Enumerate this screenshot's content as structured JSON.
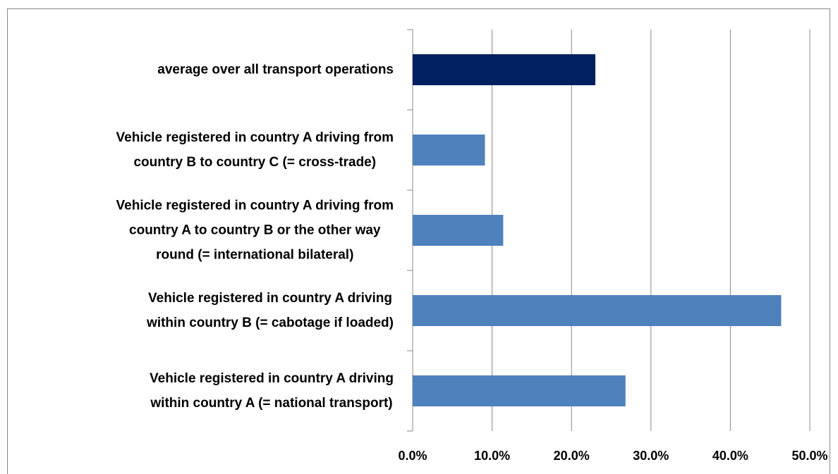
{
  "chart_data": {
    "type": "barh",
    "categories": [
      "average over all transport operations",
      "Vehicle registered in country A driving from\ncountry B to country C (= cross-trade)",
      "Vehicle registered in country A driving from\ncountry A to country B or the other way\nround (= international bilateral)",
      "Vehicle registered in country A driving\nwithin country B (= cabotage if loaded)",
      "Vehicle registered in country A driving\nwithin country A (= national transport)"
    ],
    "values": [
      23.0,
      9.1,
      11.4,
      46.4,
      26.8
    ],
    "colors": [
      "#002060",
      "#4f81bd",
      "#4f81bd",
      "#4f81bd",
      "#4f81bd"
    ],
    "xlim": [
      0,
      50
    ],
    "xticks": [
      {
        "value": 0,
        "label": "0.0%"
      },
      {
        "value": 10,
        "label": "10.0%"
      },
      {
        "value": 20,
        "label": "20.0%"
      },
      {
        "value": 30,
        "label": "30.0%"
      },
      {
        "value": 40,
        "label": "40.0%"
      },
      {
        "value": 50,
        "label": "50.0%"
      }
    ],
    "grid": true
  }
}
